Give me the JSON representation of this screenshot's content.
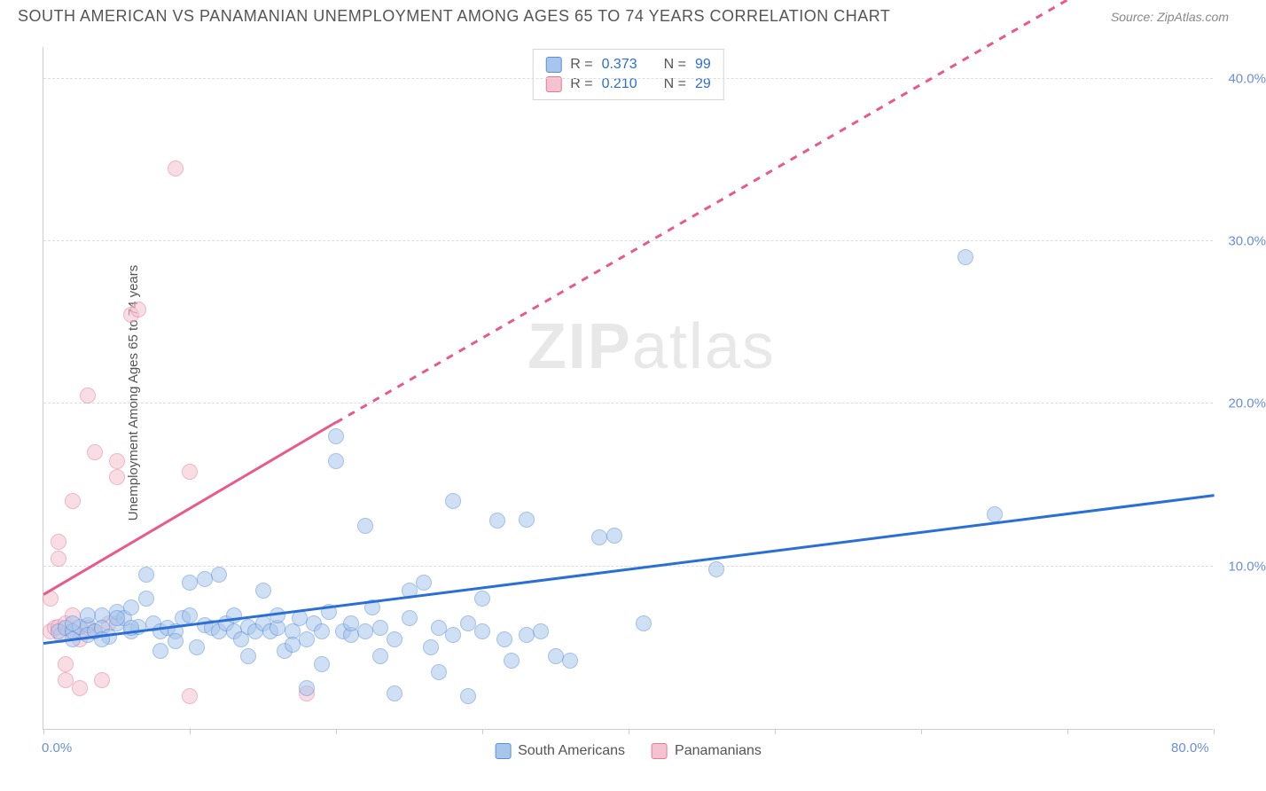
{
  "header": {
    "title": "SOUTH AMERICAN VS PANAMANIAN UNEMPLOYMENT AMONG AGES 65 TO 74 YEARS CORRELATION CHART",
    "source_prefix": "Source: ",
    "source_name": "ZipAtlas.com"
  },
  "ylabel": "Unemployment Among Ages 65 to 74 years",
  "watermark_bold": "ZIP",
  "watermark_light": "atlas",
  "chart": {
    "type": "scatter",
    "xlim": [
      0,
      80
    ],
    "ylim": [
      0,
      42
    ],
    "x_ticks": [
      0,
      10,
      20,
      30,
      40,
      50,
      60,
      70,
      80
    ],
    "y_ticks": [
      10,
      20,
      30,
      40
    ],
    "x_tick_labels": {
      "0": "0.0%",
      "80": "80.0%"
    },
    "y_tick_labels": {
      "10": "10.0%",
      "20": "20.0%",
      "30": "30.0%",
      "40": "40.0%"
    },
    "grid_color": "#dddddd",
    "axis_color": "#cccccc",
    "background": "#ffffff"
  },
  "series": {
    "blue": {
      "label": "South Americans",
      "color_fill": "#a8c5ec",
      "color_stroke": "#5a8fd6",
      "trend_color": "#2a6fd6",
      "trend": {
        "x1": 0,
        "y1": 5.2,
        "x2": 80,
        "y2": 14.3,
        "dash_after_x": 80
      },
      "R_label": "R = ",
      "R": "0.373",
      "N_label": "N = ",
      "N": "99",
      "points": [
        [
          1,
          6
        ],
        [
          1.5,
          6.2
        ],
        [
          2,
          6
        ],
        [
          2,
          5.5
        ],
        [
          2.5,
          6.3
        ],
        [
          3,
          6.4
        ],
        [
          3,
          5.8
        ],
        [
          3.5,
          6
        ],
        [
          4,
          7
        ],
        [
          4,
          6.2
        ],
        [
          4.5,
          5.7
        ],
        [
          5,
          6.5
        ],
        [
          5,
          7.2
        ],
        [
          5.5,
          6.8
        ],
        [
          6,
          6
        ],
        [
          6,
          7.5
        ],
        [
          6.5,
          6.3
        ],
        [
          7,
          8
        ],
        [
          7,
          9.5
        ],
        [
          7.5,
          6.5
        ],
        [
          8,
          6
        ],
        [
          8,
          4.8
        ],
        [
          8.5,
          6.2
        ],
        [
          9,
          6
        ],
        [
          9,
          5.4
        ],
        [
          9.5,
          6.8
        ],
        [
          10,
          7
        ],
        [
          10,
          9
        ],
        [
          10.5,
          5
        ],
        [
          11,
          6.4
        ],
        [
          11,
          9.2
        ],
        [
          11.5,
          6.2
        ],
        [
          12,
          6
        ],
        [
          12,
          9.5
        ],
        [
          12.5,
          6.5
        ],
        [
          13,
          7
        ],
        [
          13,
          6
        ],
        [
          13.5,
          5.5
        ],
        [
          14,
          6.3
        ],
        [
          14,
          4.5
        ],
        [
          14.5,
          6
        ],
        [
          15,
          6.5
        ],
        [
          15,
          8.5
        ],
        [
          15.5,
          6
        ],
        [
          16,
          6.2
        ],
        [
          16,
          7
        ],
        [
          16.5,
          4.8
        ],
        [
          17,
          6
        ],
        [
          17,
          5.2
        ],
        [
          17.5,
          6.8
        ],
        [
          18,
          5.5
        ],
        [
          18,
          2.5
        ],
        [
          18.5,
          6.5
        ],
        [
          19,
          6
        ],
        [
          19,
          4
        ],
        [
          19.5,
          7.2
        ],
        [
          20,
          18
        ],
        [
          20,
          16.5
        ],
        [
          20.5,
          6
        ],
        [
          21,
          5.8
        ],
        [
          21,
          6.5
        ],
        [
          22,
          6
        ],
        [
          22,
          12.5
        ],
        [
          22.5,
          7.5
        ],
        [
          23,
          6.2
        ],
        [
          23,
          4.5
        ],
        [
          24,
          5.5
        ],
        [
          24,
          2.2
        ],
        [
          25,
          6.8
        ],
        [
          25,
          8.5
        ],
        [
          26,
          9
        ],
        [
          26.5,
          5
        ],
        [
          27,
          6.2
        ],
        [
          27,
          3.5
        ],
        [
          28,
          5.8
        ],
        [
          28,
          14
        ],
        [
          29,
          6.5
        ],
        [
          29,
          2
        ],
        [
          30,
          6
        ],
        [
          30,
          8
        ],
        [
          31,
          12.8
        ],
        [
          31.5,
          5.5
        ],
        [
          32,
          4.2
        ],
        [
          33,
          5.8
        ],
        [
          33,
          12.9
        ],
        [
          34,
          6
        ],
        [
          35,
          4.5
        ],
        [
          36,
          4.2
        ],
        [
          38,
          11.8
        ],
        [
          39,
          11.9
        ],
        [
          41,
          6.5
        ],
        [
          46,
          9.8
        ],
        [
          63,
          29
        ],
        [
          65,
          13.2
        ],
        [
          2,
          6.5
        ],
        [
          3,
          7
        ],
        [
          4,
          5.5
        ],
        [
          5,
          6.8
        ],
        [
          6,
          6.2
        ]
      ]
    },
    "pink": {
      "label": "Panamanians",
      "color_fill": "#f5c2cf",
      "color_stroke": "#e47a9a",
      "trend_color": "#e85a8a",
      "trend": {
        "x1": 0,
        "y1": 8.2,
        "x2": 20,
        "y2": 18.8,
        "dash_after_x": 20,
        "dash_x2": 80,
        "dash_y2": 50
      },
      "R_label": "R = ",
      "R": "0.210",
      "N_label": "N = ",
      "N": "29",
      "points": [
        [
          0.5,
          6
        ],
        [
          0.5,
          8
        ],
        [
          0.8,
          6.2
        ],
        [
          1,
          10.5
        ],
        [
          1,
          11.5
        ],
        [
          1,
          6.3
        ],
        [
          1.2,
          5.8
        ],
        [
          1.5,
          6.5
        ],
        [
          1.5,
          4
        ],
        [
          1.5,
          3
        ],
        [
          2,
          14
        ],
        [
          2,
          6
        ],
        [
          2,
          7
        ],
        [
          2.5,
          5.5
        ],
        [
          2.5,
          2.5
        ],
        [
          3,
          6.2
        ],
        [
          3,
          20.5
        ],
        [
          3.5,
          17
        ],
        [
          3.5,
          6
        ],
        [
          4,
          3
        ],
        [
          4.5,
          6.5
        ],
        [
          5,
          15.5
        ],
        [
          5,
          16.5
        ],
        [
          6,
          25.5
        ],
        [
          6.5,
          25.8
        ],
        [
          9,
          34.5
        ],
        [
          10,
          2
        ],
        [
          10,
          15.8
        ],
        [
          18,
          2.2
        ]
      ]
    }
  },
  "legend_bottom": {
    "item1": "South Americans",
    "item2": "Panamanians"
  }
}
